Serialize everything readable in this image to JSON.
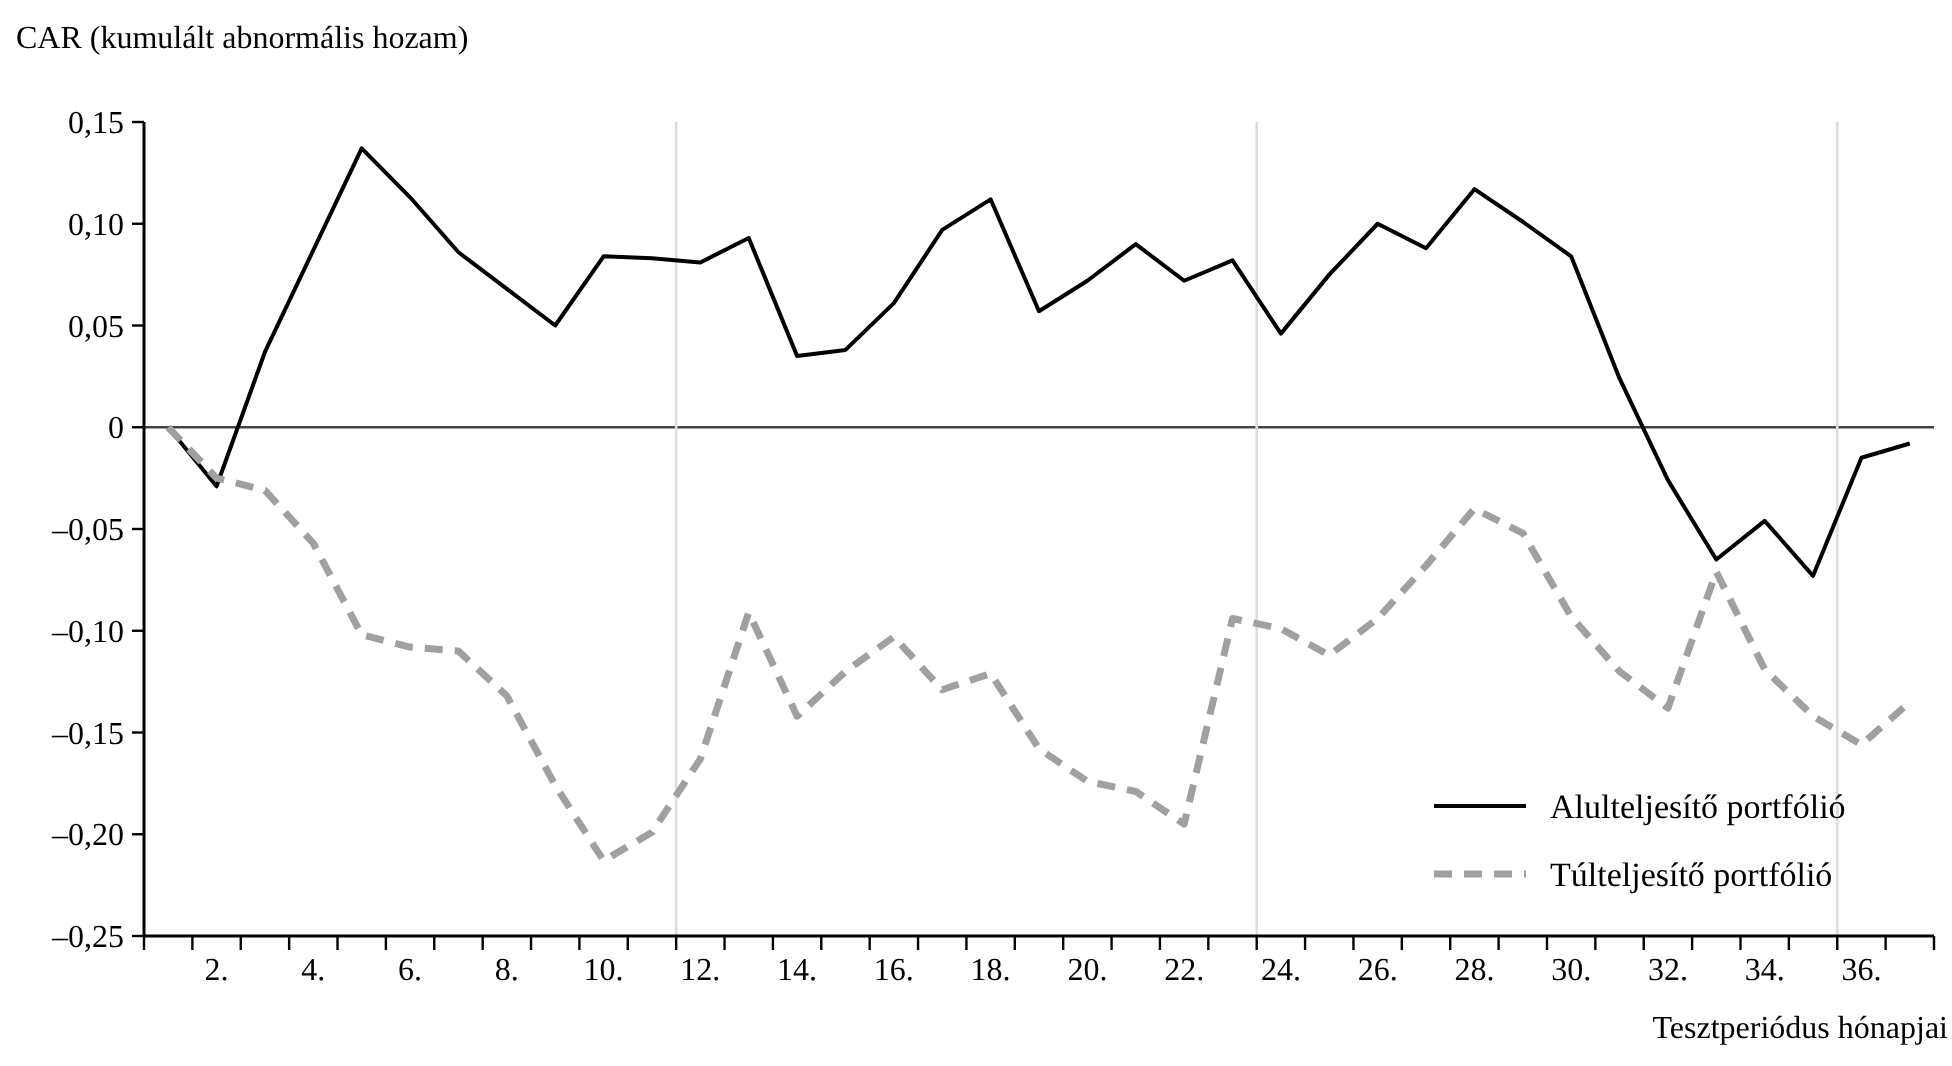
{
  "chart_data": {
    "type": "line",
    "ylabel": "CAR (kumulált abnormális hozam)",
    "xlabel": "Tesztperiódus hónapjai",
    "x": [
      1,
      2,
      3,
      4,
      5,
      6,
      7,
      8,
      9,
      10,
      11,
      12,
      13,
      14,
      15,
      16,
      17,
      18,
      19,
      20,
      21,
      22,
      23,
      24,
      25,
      26,
      27,
      28,
      29,
      30,
      31,
      32,
      33,
      34,
      35,
      36,
      37
    ],
    "series": [
      {
        "name": "Alulteljesítő portfólió",
        "color": "#000000",
        "line_style": "solid",
        "values": [
          0,
          -0.029,
          0.037,
          0.087,
          0.137,
          0.113,
          0.086,
          0.068,
          0.05,
          0.084,
          0.083,
          0.081,
          0.093,
          0.035,
          0.038,
          0.061,
          0.097,
          0.112,
          0.057,
          0.072,
          0.09,
          0.072,
          0.082,
          0.046,
          0.075,
          0.1,
          0.088,
          0.117,
          0.101,
          0.084,
          0.024,
          -0.026,
          -0.065,
          -0.046,
          -0.073,
          -0.015,
          -0.008
        ]
      },
      {
        "name": "Túlteljesítő portfólió",
        "color": "#a0a0a0",
        "line_style": "dashed",
        "values": [
          0,
          -0.025,
          -0.031,
          -0.057,
          -0.102,
          -0.108,
          -0.11,
          -0.132,
          -0.176,
          -0.213,
          -0.199,
          -0.163,
          -0.091,
          -0.142,
          -0.12,
          -0.103,
          -0.129,
          -0.121,
          -0.158,
          -0.174,
          -0.179,
          -0.195,
          -0.094,
          -0.099,
          -0.112,
          -0.094,
          -0.068,
          -0.04,
          -0.052,
          -0.093,
          -0.12,
          -0.138,
          -0.071,
          -0.119,
          -0.142,
          -0.156,
          -0.135
        ]
      }
    ],
    "xlim": [
      0.5,
      37.5
    ],
    "xticks": [
      {
        "value": 0.5,
        "label": null
      },
      {
        "value": 1.5,
        "label": null
      },
      {
        "value": 2.5,
        "label": null
      },
      {
        "value": 3.5,
        "label": null
      },
      {
        "value": 4.5,
        "label": null
      },
      {
        "value": 5.5,
        "label": null
      },
      {
        "value": 6.5,
        "label": null
      },
      {
        "value": 7.5,
        "label": null
      },
      {
        "value": 8.5,
        "label": null
      },
      {
        "value": 9.5,
        "label": null
      },
      {
        "value": 10.5,
        "label": null
      },
      {
        "value": 11.5,
        "label": null
      },
      {
        "value": 12.5,
        "label": null
      },
      {
        "value": 13.5,
        "label": null
      },
      {
        "value": 14.5,
        "label": null
      },
      {
        "value": 15.5,
        "label": null
      },
      {
        "value": 16.5,
        "label": null
      },
      {
        "value": 17.5,
        "label": null
      },
      {
        "value": 18.5,
        "label": null
      },
      {
        "value": 19.5,
        "label": null
      },
      {
        "value": 20.5,
        "label": null
      },
      {
        "value": 21.5,
        "label": null
      },
      {
        "value": 22.5,
        "label": null
      },
      {
        "value": 23.5,
        "label": null
      },
      {
        "value": 24.5,
        "label": null
      },
      {
        "value": 25.5,
        "label": null
      },
      {
        "value": 26.5,
        "label": null
      },
      {
        "value": 27.5,
        "label": null
      },
      {
        "value": 28.5,
        "label": null
      },
      {
        "value": 29.5,
        "label": null
      },
      {
        "value": 30.5,
        "label": null
      },
      {
        "value": 31.5,
        "label": null
      },
      {
        "value": 32.5,
        "label": null
      },
      {
        "value": 33.5,
        "label": null
      },
      {
        "value": 34.5,
        "label": null
      },
      {
        "value": 35.5,
        "label": null
      },
      {
        "value": 36.5,
        "label": null
      },
      {
        "value": 37.5,
        "label": null
      },
      {
        "value": 2,
        "label": "2."
      },
      {
        "value": 4,
        "label": "4."
      },
      {
        "value": 6,
        "label": "6."
      },
      {
        "value": 8,
        "label": "8."
      },
      {
        "value": 10,
        "label": "10."
      },
      {
        "value": 12,
        "label": "12."
      },
      {
        "value": 14,
        "label": "14."
      },
      {
        "value": 16,
        "label": "16."
      },
      {
        "value": 18,
        "label": "18."
      },
      {
        "value": 20,
        "label": "20."
      },
      {
        "value": 22,
        "label": "22."
      },
      {
        "value": 24,
        "label": "24."
      },
      {
        "value": 26,
        "label": "26."
      },
      {
        "value": 28,
        "label": "28."
      },
      {
        "value": 30,
        "label": "30."
      },
      {
        "value": 32,
        "label": "32."
      },
      {
        "value": 34,
        "label": "34."
      },
      {
        "value": 36,
        "label": "36."
      }
    ],
    "ylim": [
      -0.25,
      0.15
    ],
    "yticks": [
      {
        "value": -0.25,
        "label": "–0,25"
      },
      {
        "value": -0.2,
        "label": "–0,20"
      },
      {
        "value": -0.15,
        "label": "–0,15"
      },
      {
        "value": -0.1,
        "label": "–0,10"
      },
      {
        "value": -0.05,
        "label": "–0,05"
      },
      {
        "value": 0,
        "label": "0"
      },
      {
        "value": 0.05,
        "label": "0,05"
      },
      {
        "value": 0.1,
        "label": "0,10"
      },
      {
        "value": 0.15,
        "label": "0,15"
      }
    ],
    "ref_lines": [
      {
        "axis": "y",
        "value": 0,
        "color": "#444444"
      },
      {
        "axis": "x",
        "value": 11.5,
        "color": "#dddddd"
      },
      {
        "axis": "x",
        "value": 23.5,
        "color": "#dddddd"
      },
      {
        "axis": "x",
        "value": 35.5,
        "color": "#dddddd"
      }
    ],
    "legend": "bottom right",
    "marker": "none",
    "grid": false
  }
}
